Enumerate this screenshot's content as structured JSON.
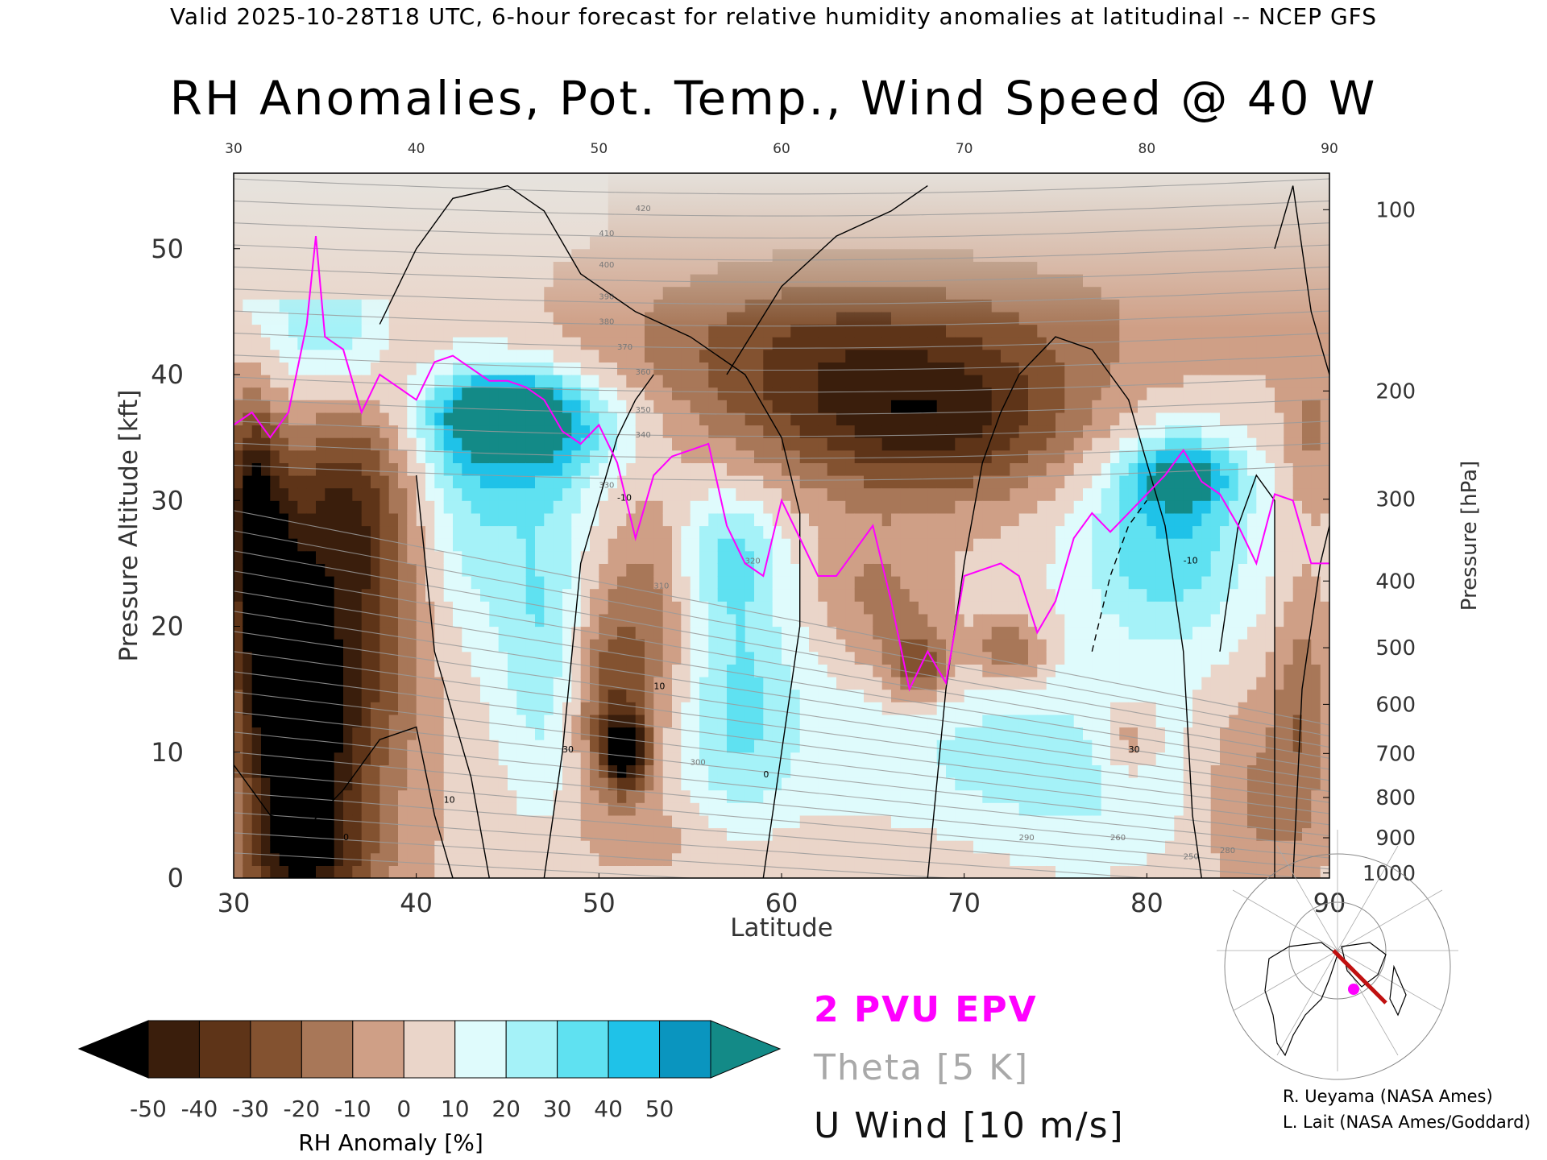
{
  "header": "Valid 2025-10-28T18 UTC, 6-hour forecast for relative humidity anomalies at latitudinal -- NCEP GFS",
  "title": "RH Anomalies, Pot. Temp., Wind Speed @ 40 W",
  "chart_data": {
    "type": "heatmap",
    "xlabel": "Latitude",
    "ylabel": "Pressure Altitude [kft]",
    "y2label": "Pressure [hPa]",
    "xlim": [
      30,
      90
    ],
    "ylim": [
      0,
      56
    ],
    "x_ticks": [
      30,
      40,
      50,
      60,
      70,
      80,
      90
    ],
    "y_ticks": [
      0,
      10,
      20,
      30,
      40,
      50
    ],
    "pressure_ticks": [
      "100",
      "200",
      "300",
      "400",
      "500",
      "600",
      "700",
      "800",
      "900",
      "1000"
    ],
    "pressure_tick_heights_kft": [
      53.1,
      38.7,
      30.1,
      23.6,
      18.3,
      13.8,
      9.9,
      6.4,
      3.2,
      0.4
    ],
    "colorbar": {
      "label": "RH Anomaly [%]",
      "ticks": [
        "-50",
        "-40",
        "-30",
        "-20",
        "-10",
        "0",
        "10",
        "20",
        "30",
        "40",
        "50"
      ],
      "levels": [
        -50,
        -40,
        -30,
        -20,
        -10,
        0,
        10,
        20,
        30,
        40,
        50
      ],
      "colors": [
        "#000000",
        "#3a1e0c",
        "#5e3418",
        "#835230",
        "#a87758",
        "#cf9f86",
        "#ead5c9",
        "#dffbfc",
        "#a5f2f8",
        "#5fe1f1",
        "#1fc2e8",
        "#0a95bf",
        "#138a87"
      ]
    },
    "legend": [
      "2 PVU EPV",
      "Theta [5 K]",
      "U Wind [10 m/s]"
    ],
    "legend_colors": [
      "#ff00ff",
      "#a0a0a0",
      "#000000"
    ],
    "series": [
      {
        "name": "2 PVU EPV",
        "x": [
          30,
          31,
          32,
          33,
          34,
          34.5,
          35,
          36,
          37,
          38,
          39,
          40,
          41,
          42,
          43,
          44,
          45,
          46,
          47,
          48,
          49,
          50,
          51,
          52,
          53,
          54,
          55,
          56,
          57,
          58,
          59,
          60,
          61,
          62,
          63,
          64,
          65,
          66,
          67,
          68,
          69,
          70,
          71,
          72,
          73,
          74,
          75,
          76,
          77,
          78,
          79,
          80,
          81,
          82,
          83,
          84,
          85,
          86,
          87,
          88,
          89,
          90
        ],
        "y": [
          36,
          37,
          35,
          37,
          44,
          51,
          43,
          42,
          37,
          40,
          39,
          38,
          41,
          41.5,
          40.5,
          39.5,
          39.5,
          39,
          38,
          35.5,
          34.5,
          36,
          33,
          27,
          32,
          33.5,
          34,
          34.5,
          28,
          25,
          24,
          30,
          27,
          24,
          24,
          26,
          28,
          22,
          15,
          18,
          15.5,
          24,
          24.5,
          25,
          24,
          19.5,
          22,
          27,
          29,
          27.5,
          29,
          30.5,
          32,
          34,
          31.5,
          30.5,
          28,
          25,
          30.5,
          30,
          25,
          25
        ]
      }
    ],
    "u_wind_contour_labels": [
      "0",
      "10",
      "30",
      "-10"
    ],
    "theta_contour_labels": [
      "250",
      "260",
      "280",
      "290",
      "300",
      "310",
      "320",
      "330",
      "340",
      "350",
      "360",
      "370",
      "380",
      "390",
      "400",
      "410",
      "420"
    ]
  },
  "credits": [
    "R. Ueyama (NASA Ames)",
    "L. Lait (NASA Ames/Goddard)"
  ]
}
